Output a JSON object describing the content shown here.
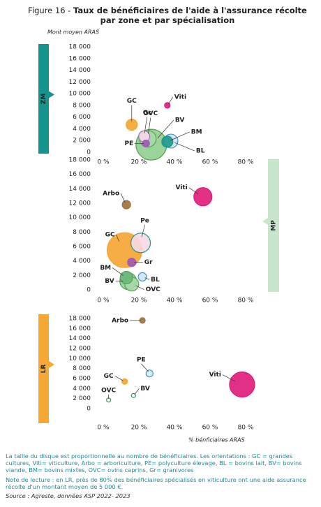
{
  "title_prefix": "Figure 16 -",
  "title": "Taux de bénéficiaires de l'aide à l'assurance récolte par zone et par spécialisation",
  "ylabel": "Mont moyen ARAS",
  "xlabel": "% bénficiaires ARAS",
  "notes": [
    "La taille du disque est proportionnelle au nombre de bénéficiaires. Les orientations : GC = grandes cultures, Viti= viticulture, Arbo = arboriculture, PE= polyculture élevage, BL = bovins lait, BV= bovins viande, BM= bovins mixtes, OVC= ovins caprins, Gr= granivores",
    "Note de lecture : en LR, près de 80% des bénéficiaires spécialisés en viticulture ont une aide assurance récolte d'un montant moyen de 5 000 €."
  ],
  "source": "Source : Agreste, données ASP 2022- 2023",
  "chart_data": [
    {
      "type": "bubble",
      "zone": "ZM",
      "zone_color": "#14948c",
      "labels": [
        "BV",
        "OVC",
        "BL",
        "GC",
        "Gr",
        "BM",
        "PE",
        "Viti"
      ],
      "x": [
        27,
        25,
        38,
        16,
        23,
        36,
        24,
        36
      ],
      "values": [
        1300,
        2300,
        1900,
        4700,
        2700,
        1800,
        1500,
        8000
      ],
      "sizes": [
        4356,
        1296,
        900,
        576,
        576,
        576,
        225,
        144
      ],
      "colors": [
        "#8fcf8f",
        "#a6d9a6",
        "#cfe3f1",
        "#f5a530",
        "#f4d8e8",
        "#1a9a8a",
        "#9b59b6",
        "#e0197a"
      ],
      "edgecolors": [
        "#5aa05a",
        "#5aa05a",
        "#4a90c0",
        "#f5a530",
        "#a070b8",
        "#1a9a8a",
        "#9b59b6",
        "#e0197a"
      ],
      "xlim": [
        0,
        80
      ],
      "ylim": [
        0,
        18000
      ],
      "xticks": [
        {
          "value": 0,
          "label": "0 %"
        },
        {
          "value": 20,
          "label": "20 %"
        },
        {
          "value": 40,
          "label": "40 %"
        },
        {
          "value": 60,
          "label": "60 %"
        },
        {
          "value": 80,
          "label": "80 %"
        }
      ],
      "yticks": [
        0,
        {
          "value": 2000,
          "label": "2 000"
        },
        {
          "value": 4000,
          "label": "4 000"
        },
        {
          "value": 6000,
          "label": "6 000"
        },
        {
          "value": 8000,
          "label": "8 000"
        },
        {
          "value": 10000,
          "label": "10 000"
        },
        {
          "value": 12000,
          "label": "12 000"
        },
        {
          "value": 14000,
          "label": "14 000"
        },
        {
          "value": 16000,
          "label": "16 000"
        },
        {
          "value": 18000,
          "label": "18 000"
        }
      ],
      "grid": false
    },
    {
      "type": "bubble",
      "zone": "MP",
      "zone_color": "#c8e6cc",
      "labels": [
        "GC",
        "Pe",
        "Viti",
        "BV",
        "OVC",
        "BM",
        "Arbo",
        "Gr",
        "BL"
      ],
      "x": [
        12,
        21,
        56,
        14,
        16,
        13,
        13,
        16,
        22
      ],
      "values": [
        5500,
        6500,
        12900,
        1200,
        800,
        1700,
        11800,
        3800,
        1800
      ],
      "sizes": [
        5625,
        1764,
        1521,
        1296,
        900,
        729,
        324,
        324,
        324
      ],
      "colors": [
        "#f5a530",
        "#f7d9e6",
        "#e0197a",
        "#8fcf8f",
        "#a6d9a6",
        "#6ab87a",
        "#a0703a",
        "#9b59b6",
        "#cfe3f1"
      ],
      "edgecolors": [
        "#f5a530",
        "#1a9a8a",
        "#e0197a",
        "#5aa05a",
        "#5aa05a",
        "#5aa05a",
        "#a0703a",
        "#9b59b6",
        "#4a90c0"
      ],
      "xlim": [
        0,
        80
      ],
      "ylim": [
        0,
        18000
      ],
      "xticks": [
        {
          "value": 0,
          "label": "0 %"
        },
        {
          "value": 20,
          "label": "20 %"
        },
        {
          "value": 40,
          "label": "40 %"
        },
        {
          "value": 60,
          "label": "60 %"
        },
        {
          "value": 80,
          "label": "80 %"
        }
      ],
      "yticks": [
        0,
        {
          "value": 2000,
          "label": "2 000"
        },
        {
          "value": 4000,
          "label": "4 000"
        },
        {
          "value": 6000,
          "label": "6 000"
        },
        {
          "value": 8000,
          "label": "8 000"
        },
        {
          "value": 10000,
          "label": "10 000"
        },
        {
          "value": 12000,
          "label": "12 000"
        },
        {
          "value": 14000,
          "label": "14 000"
        },
        {
          "value": 16000,
          "label": "16 000"
        },
        {
          "value": 18000,
          "label": "18 000"
        }
      ],
      "grid": false
    },
    {
      "type": "bubble",
      "zone": "LR",
      "zone_color": "#f5a833",
      "labels": [
        "Viti",
        "PE",
        "Arbo",
        "GC",
        "BV",
        "OVC"
      ],
      "x": [
        78,
        26,
        22,
        12,
        17,
        3
      ],
      "values": [
        4800,
        7000,
        17600,
        5400,
        2600,
        1700
      ],
      "sizes": [
        2916,
        225,
        144,
        144,
        81,
        81
      ],
      "colors": [
        "#e0197a",
        "#d8ecf4",
        "#a0703a",
        "#f5a530",
        "#ffffff",
        "#ffffff"
      ],
      "edgecolors": [
        "#e0197a",
        "#3aa0c0",
        "#a0703a",
        "#f5a530",
        "#3a9a5a",
        "#3a9a5a"
      ],
      "xlim": [
        0,
        80
      ],
      "ylim": [
        0,
        18000
      ],
      "xticks": [
        {
          "value": 0,
          "label": "0 %"
        },
        {
          "value": 20,
          "label": "20 %"
        },
        {
          "value": 40,
          "label": "40 %"
        },
        {
          "value": 60,
          "label": "60 %"
        },
        {
          "value": 80,
          "label": "80 %"
        }
      ],
      "yticks": [
        0,
        {
          "value": 2000,
          "label": "2 000"
        },
        {
          "value": 4000,
          "label": "4 000"
        },
        {
          "value": 6000,
          "label": "6 000"
        },
        {
          "value": 8000,
          "label": "8 000"
        },
        {
          "value": 10000,
          "label": "10 000"
        },
        {
          "value": 12000,
          "label": "12 000"
        },
        {
          "value": 14000,
          "label": "14 000"
        },
        {
          "value": 16000,
          "label": "16 000"
        },
        {
          "value": 18000,
          "label": "18 000"
        }
      ],
      "grid": false
    }
  ]
}
